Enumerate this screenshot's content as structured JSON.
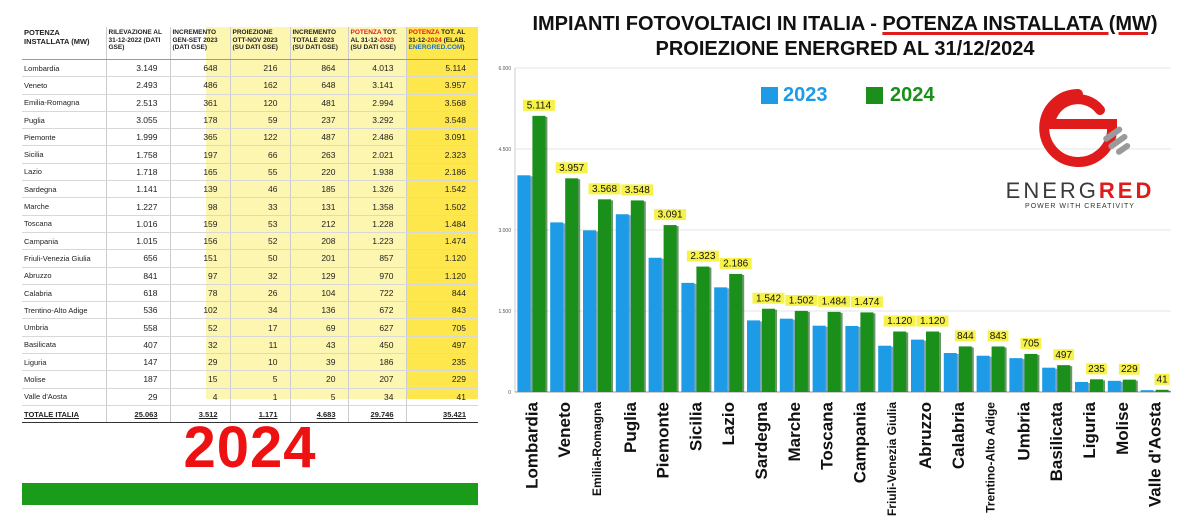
{
  "table": {
    "headers": [
      "POTENZA INSTALLATA (MW)",
      "RILEVAZIONE AL 31-12-2022 (DATI GSE)",
      "INCREMENTO GEN-SET 2023 (DATI GSE)",
      "PROIEZIONE OTT-NOV 2023 (SU DATI GSE)",
      "INCREMENTO TOTALE 2023 (SU DATI GSE)",
      "POTENZA TOT. AL 31-12-2023 (SU DATI GSE)",
      "POTENZA TOT. AL 31-12-2024 (ELAB. ENERGRED.COM)"
    ],
    "rows": [
      [
        "Lombardia",
        "3.149",
        "648",
        "216",
        "864",
        "4.013",
        "5.114"
      ],
      [
        "Veneto",
        "2.493",
        "486",
        "162",
        "648",
        "3.141",
        "3.957"
      ],
      [
        "Emilia-Romagna",
        "2.513",
        "361",
        "120",
        "481",
        "2.994",
        "3.568"
      ],
      [
        "Puglia",
        "3.055",
        "178",
        "59",
        "237",
        "3.292",
        "3.548"
      ],
      [
        "Piemonte",
        "1.999",
        "365",
        "122",
        "487",
        "2.486",
        "3.091"
      ],
      [
        "Sicilia",
        "1.758",
        "197",
        "66",
        "263",
        "2.021",
        "2.323"
      ],
      [
        "Lazio",
        "1.718",
        "165",
        "55",
        "220",
        "1.938",
        "2.186"
      ],
      [
        "Sardegna",
        "1.141",
        "139",
        "46",
        "185",
        "1.326",
        "1.542"
      ],
      [
        "Marche",
        "1.227",
        "98",
        "33",
        "131",
        "1.358",
        "1.502"
      ],
      [
        "Toscana",
        "1.016",
        "159",
        "53",
        "212",
        "1.228",
        "1.484"
      ],
      [
        "Campania",
        "1.015",
        "156",
        "52",
        "208",
        "1.223",
        "1.474"
      ],
      [
        "Friuli-Venezia Giulia",
        "656",
        "151",
        "50",
        "201",
        "857",
        "1.120"
      ],
      [
        "Abruzzo",
        "841",
        "97",
        "32",
        "129",
        "970",
        "1.120"
      ],
      [
        "Calabria",
        "618",
        "78",
        "26",
        "104",
        "722",
        "844"
      ],
      [
        "Trentino-Alto Adige",
        "536",
        "102",
        "34",
        "136",
        "672",
        "843"
      ],
      [
        "Umbria",
        "558",
        "52",
        "17",
        "69",
        "627",
        "705"
      ],
      [
        "Basilicata",
        "407",
        "32",
        "11",
        "43",
        "450",
        "497"
      ],
      [
        "Liguria",
        "147",
        "29",
        "10",
        "39",
        "186",
        "235"
      ],
      [
        "Molise",
        "187",
        "15",
        "5",
        "20",
        "207",
        "229"
      ],
      [
        "Valle d'Aosta",
        "29",
        "4",
        "1",
        "5",
        "34",
        "41"
      ]
    ],
    "total": [
      "TOTALE ITALIA",
      "25.063",
      "3.512",
      "1.171",
      "4.683",
      "29.746",
      "35.421"
    ]
  },
  "year_label": "2024",
  "colors": {
    "blue": "#1e9be6",
    "green": "#1a8f1a",
    "red": "#e01b1b",
    "yellow_label": "#f7f24a"
  },
  "chart_data": {
    "type": "bar",
    "title": "IMPIANTI FOTOVOLTAICI IN ITALIA - POTENZA INSTALLATA (MW)",
    "subtitle": "PROIEZIONE ENERGRED AL 31/12/2024",
    "categories": [
      "Lombardia",
      "Veneto",
      "Emilia-Romagna",
      "Puglia",
      "Piemonte",
      "Sicilia",
      "Lazio",
      "Sardegna",
      "Marche",
      "Toscana",
      "Campania",
      "Friuli-Venezia Giulia",
      "Abruzzo",
      "Calabria",
      "Trentino-Alto Adige",
      "Umbria",
      "Basilicata",
      "Liguria",
      "Molise",
      "Valle d'Aosta"
    ],
    "series": [
      {
        "name": "2023",
        "values": [
          4013,
          3141,
          2994,
          3292,
          2486,
          2021,
          1938,
          1326,
          1358,
          1228,
          1223,
          857,
          970,
          722,
          672,
          627,
          450,
          186,
          207,
          34
        ]
      },
      {
        "name": "2024",
        "values": [
          5114,
          3957,
          3568,
          3548,
          3091,
          2323,
          2186,
          1542,
          1502,
          1484,
          1474,
          1120,
          1120,
          844,
          843,
          705,
          497,
          235,
          229,
          41
        ]
      }
    ],
    "data_labels": [
      "5.114",
      "3.957",
      "3.568",
      "3.548",
      "3.091",
      "2.323",
      "2.186",
      "1.542",
      "1.502",
      "1.484",
      "1.474",
      "1.120",
      "1.120",
      "844",
      "843",
      "705",
      "497",
      "235",
      "229",
      "41"
    ],
    "y_ticks": [
      0,
      1500,
      3000,
      4500,
      6000
    ],
    "y_tick_labels": [
      "0",
      "1.500",
      "3.000",
      "4.500",
      "6.000"
    ],
    "ylim": [
      0,
      6000
    ],
    "grid": true,
    "legend": "top-left"
  },
  "logo": {
    "brand_a": "ENERG",
    "brand_b": "RED",
    "tagline": "POWER WITH CREATIVITY"
  }
}
